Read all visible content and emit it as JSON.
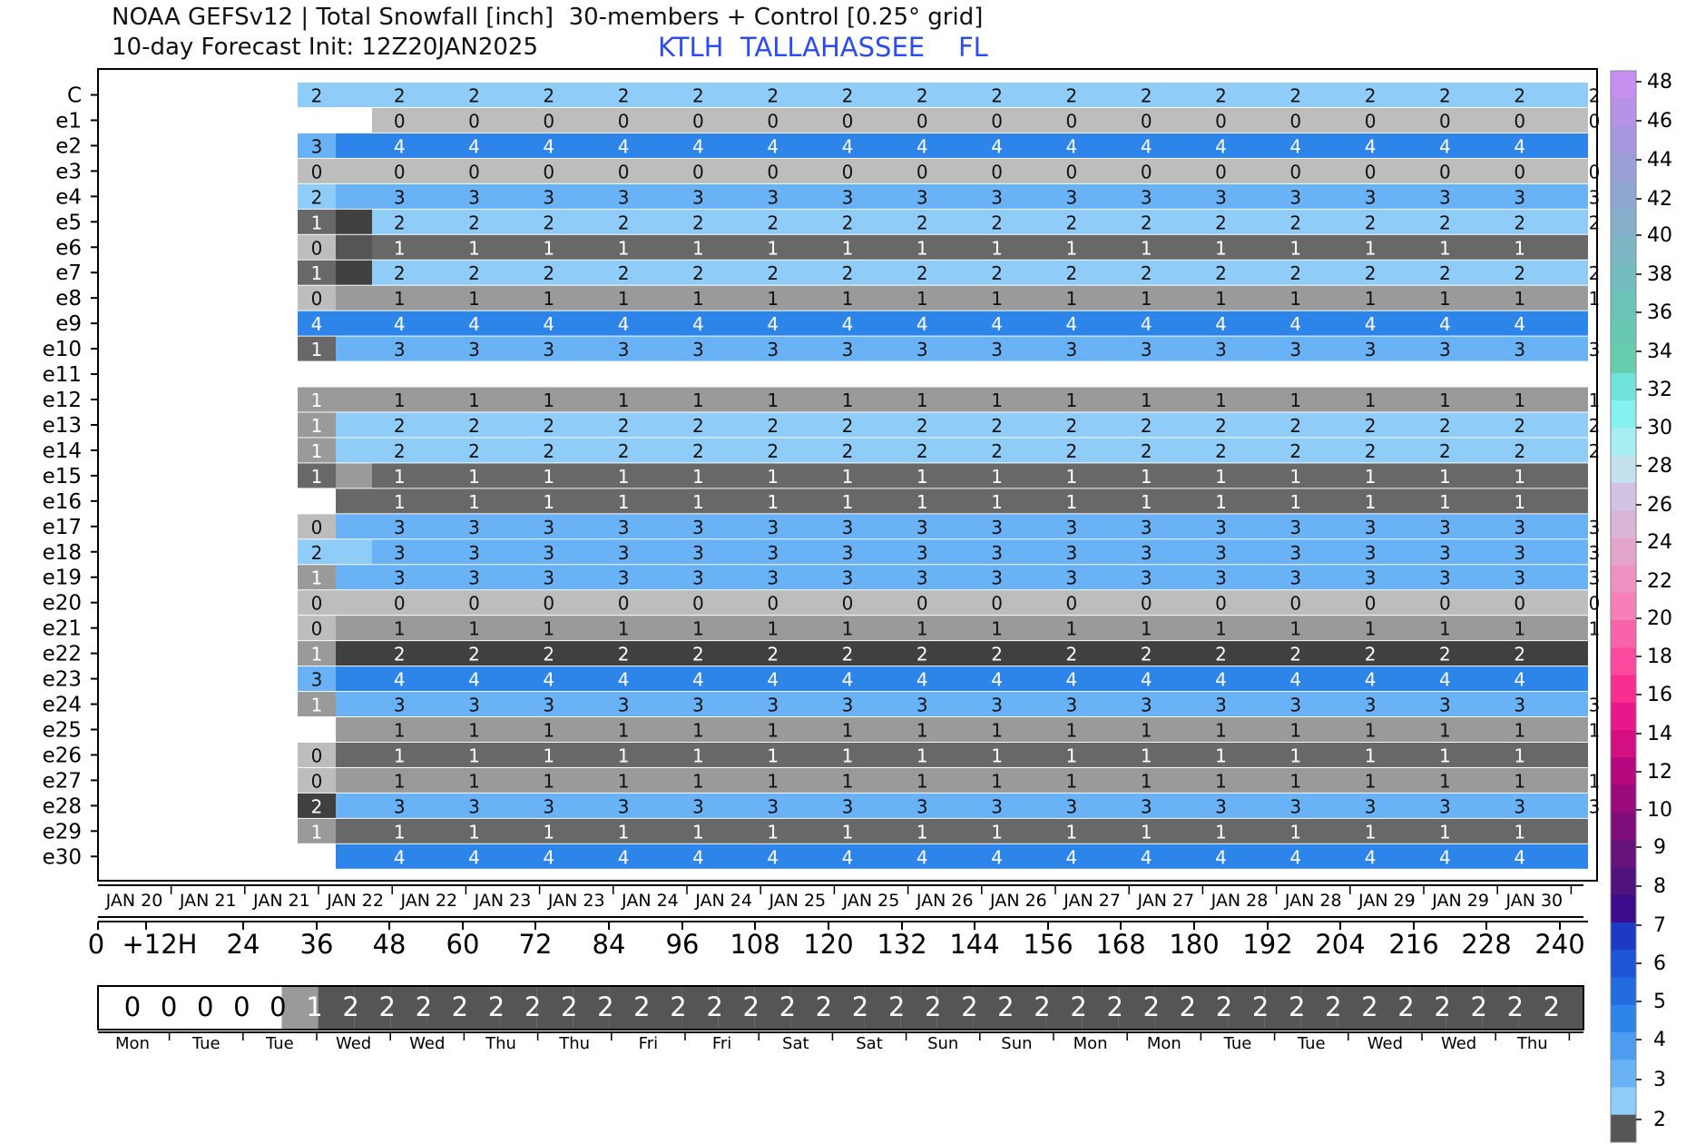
{
  "header": {
    "title_line1": "NOAA GEFSv12 | Total Snowfall [inch]  30-members + Control [0.25° grid]",
    "title_line2": "10-day Forecast Init: 12Z20JAN2025",
    "station": "KTLH  TALLAHASSEE    FL"
  },
  "colors": {
    "0": "#bdbdbd",
    "1": "#686868",
    "2": "#8fcdf8",
    "3": "#69b2f6",
    "4": "#2d85ea",
    "mid_dark": "#555555",
    "very_dark": "#404040",
    "bar_accent": "#9a9a9a"
  },
  "chart_data": {
    "type": "heatmap",
    "title": "NOAA GEFSv12 | Total Snowfall [inch]  30-members + Control [0.25° grid]",
    "members": [
      "C",
      "e1",
      "e2",
      "e3",
      "e4",
      "e5",
      "e6",
      "e7",
      "e8",
      "e9",
      "e10",
      "e11",
      "e12",
      "e13",
      "e14",
      "e15",
      "e16",
      "e17",
      "e18",
      "e19",
      "e20",
      "e21",
      "e22",
      "e23",
      "e24",
      "e25",
      "e26",
      "e27",
      "e28",
      "e29",
      "e30"
    ],
    "forecast_hours": [
      36,
      42,
      48,
      54,
      60,
      66,
      72,
      78,
      84,
      90,
      96,
      102,
      108,
      114,
      120,
      126,
      132,
      138,
      144,
      150,
      156,
      162,
      168,
      174,
      180,
      186,
      192,
      198,
      204,
      210,
      216,
      222,
      228,
      234,
      240
    ],
    "labeled_hours": [
      36,
      48,
      60,
      72,
      84,
      96,
      108,
      120,
      132,
      144,
      156,
      168,
      180,
      192,
      204,
      216,
      228,
      240
    ],
    "rows": [
      {
        "member": "C",
        "first": 2,
        "first_shade": "2",
        "early": "2",
        "value": 2,
        "shade": "2",
        "start_hour": 36
      },
      {
        "member": "e1",
        "first": null,
        "first_shade": null,
        "early": null,
        "value": 0,
        "shade": "0",
        "start_hour": 48
      },
      {
        "member": "e2",
        "first": 3,
        "first_shade": "3",
        "early": "4",
        "value": 4,
        "shade": "4",
        "start_hour": 36
      },
      {
        "member": "e3",
        "first": 0,
        "first_shade": "0",
        "early": "0",
        "value": 0,
        "shade": "0",
        "start_hour": 36
      },
      {
        "member": "e4",
        "first": 2,
        "first_shade": "2",
        "early": "3",
        "value": 3,
        "shade": "3",
        "start_hour": 36
      },
      {
        "member": "e5",
        "first": 1,
        "first_shade": "1",
        "early": "very_dark",
        "value": 2,
        "shade": "2",
        "start_hour": 36
      },
      {
        "member": "e6",
        "first": 0,
        "first_shade": "0",
        "early": "mid_dark",
        "value": 1,
        "shade": "1",
        "start_hour": 36
      },
      {
        "member": "e7",
        "first": 1,
        "first_shade": "1",
        "early": "very_dark",
        "value": 2,
        "shade": "2",
        "start_hour": 36
      },
      {
        "member": "e8",
        "first": 0,
        "first_shade": "0",
        "early": "bar_accent",
        "value": 1,
        "shade": "bar_accent",
        "start_hour": 36
      },
      {
        "member": "e9",
        "first": 4,
        "first_shade": "4",
        "early": "4",
        "value": 4,
        "shade": "4",
        "start_hour": 36
      },
      {
        "member": "e10",
        "first": 1,
        "first_shade": "1",
        "early": "3",
        "value": 3,
        "shade": "3",
        "start_hour": 36
      },
      {
        "member": "e11",
        "first": null,
        "first_shade": null,
        "early": null,
        "value": null,
        "shade": null,
        "start_hour": null
      },
      {
        "member": "e12",
        "first": 1,
        "first_shade": "bar_accent",
        "early": "bar_accent",
        "value": 1,
        "shade": "bar_accent",
        "start_hour": 36
      },
      {
        "member": "e13",
        "first": 1,
        "first_shade": "bar_accent",
        "early": "2",
        "value": 2,
        "shade": "2",
        "start_hour": 36
      },
      {
        "member": "e14",
        "first": 1,
        "first_shade": "bar_accent",
        "early": "2",
        "value": 2,
        "shade": "2",
        "start_hour": 36
      },
      {
        "member": "e15",
        "first": 1,
        "first_shade": "1",
        "early": "bar_accent",
        "value": 1,
        "shade": "1",
        "start_hour": 36
      },
      {
        "member": "e16",
        "first": null,
        "first_shade": null,
        "early": "1",
        "value": 1,
        "shade": "1",
        "start_hour": 42
      },
      {
        "member": "e17",
        "first": 0,
        "first_shade": "0",
        "early": "3",
        "value": 3,
        "shade": "3",
        "start_hour": 36
      },
      {
        "member": "e18",
        "first": 2,
        "first_shade": "2",
        "early": "2",
        "value": 3,
        "shade": "3",
        "start_hour": 36
      },
      {
        "member": "e19",
        "first": 1,
        "first_shade": "bar_accent",
        "early": "3",
        "value": 3,
        "shade": "3",
        "start_hour": 36
      },
      {
        "member": "e20",
        "first": 0,
        "first_shade": "0",
        "early": "0",
        "value": 0,
        "shade": "0",
        "start_hour": 36
      },
      {
        "member": "e21",
        "first": 0,
        "first_shade": "0",
        "early": "bar_accent",
        "value": 1,
        "shade": "bar_accent",
        "start_hour": 36
      },
      {
        "member": "e22",
        "first": 1,
        "first_shade": "bar_accent",
        "early": "very_dark",
        "value": 2,
        "shade": "very_dark",
        "start_hour": 36
      },
      {
        "member": "e23",
        "first": 3,
        "first_shade": "3",
        "early": "4",
        "value": 4,
        "shade": "4",
        "start_hour": 36
      },
      {
        "member": "e24",
        "first": 1,
        "first_shade": "bar_accent",
        "early": "3",
        "value": 3,
        "shade": "3",
        "start_hour": 36
      },
      {
        "member": "e25",
        "first": null,
        "first_shade": null,
        "early": "bar_accent",
        "value": 1,
        "shade": "bar_accent",
        "start_hour": 42
      },
      {
        "member": "e26",
        "first": 0,
        "first_shade": "0",
        "early": "1",
        "value": 1,
        "shade": "1",
        "start_hour": 36
      },
      {
        "member": "e27",
        "first": 0,
        "first_shade": "0",
        "early": "bar_accent",
        "value": 1,
        "shade": "bar_accent",
        "start_hour": 36
      },
      {
        "member": "e28",
        "first": 2,
        "first_shade": "very_dark",
        "early": "3",
        "value": 3,
        "shade": "3",
        "start_hour": 36
      },
      {
        "member": "e29",
        "first": 1,
        "first_shade": "bar_accent",
        "early": "1",
        "value": 1,
        "shade": "1",
        "start_hour": 36
      },
      {
        "member": "e30",
        "first": null,
        "first_shade": null,
        "early": "4",
        "value": 4,
        "shade": "4",
        "start_hour": 42
      }
    ],
    "date_labels": [
      "JAN 20",
      "JAN 21",
      "JAN 21",
      "JAN 22",
      "JAN 22",
      "JAN 23",
      "JAN 23",
      "JAN 24",
      "JAN 24",
      "JAN 25",
      "JAN 25",
      "JAN 26",
      "JAN 26",
      "JAN 27",
      "JAN 27",
      "JAN 28",
      "JAN 28",
      "JAN 29",
      "JAN 29",
      "JAN 30"
    ],
    "hour_labels": [
      "0",
      "+12H",
      "24",
      "36",
      "48",
      "60",
      "72",
      "84",
      "96",
      "108",
      "120",
      "132",
      "144",
      "156",
      "168",
      "180",
      "192",
      "204",
      "216",
      "228",
      "240"
    ],
    "summary_bar": {
      "values": [
        0,
        0,
        0,
        0,
        0,
        1,
        2,
        2,
        2,
        2,
        2,
        2,
        2,
        2,
        2,
        2,
        2,
        2,
        2,
        2,
        2,
        2,
        2,
        2,
        2,
        2,
        2,
        2,
        2,
        2,
        2,
        2,
        2,
        2,
        2,
        2,
        2,
        2,
        2,
        2,
        2
      ],
      "hours": [
        0,
        6,
        12,
        18,
        24,
        30,
        36,
        42,
        48,
        54,
        60,
        66,
        72,
        78,
        84,
        90,
        96,
        102,
        108,
        114,
        120,
        126,
        132,
        138,
        144,
        150,
        156,
        162,
        168,
        174,
        180,
        186,
        192,
        198,
        204,
        210,
        216,
        222,
        228,
        234,
        240
      ],
      "colored_from_hour": 30
    },
    "day_labels": [
      "Mon",
      "Tue",
      "Tue",
      "Wed",
      "Wed",
      "Thu",
      "Thu",
      "Fri",
      "Fri",
      "Sat",
      "Sat",
      "Sun",
      "Sun",
      "Mon",
      "Mon",
      "Tue",
      "Tue",
      "Wed",
      "Wed",
      "Thu"
    ],
    "colorbar": {
      "labels": [
        "48",
        "46",
        "44",
        "42",
        "40",
        "38",
        "36",
        "34",
        "32",
        "30",
        "28",
        "26",
        "24",
        "22",
        "20",
        "18",
        "16",
        "14",
        "12",
        "10",
        "9",
        "8",
        "7",
        "6",
        "5",
        "4",
        "3",
        "2"
      ],
      "colors_top_to_bottom": [
        "#c68ff0",
        "#b793e8",
        "#a897e0",
        "#9a9fd8",
        "#8fa6d0",
        "#86afcc",
        "#7db7c6",
        "#74bdbf",
        "#6cc3b8",
        "#69c8b2",
        "#66ceac",
        "#70e3dd",
        "#86f1ef",
        "#a6eef0",
        "#c3e2ee",
        "#d2c3e4",
        "#d9b5d8",
        "#e3a5cc",
        "#ee92c2",
        "#f67fb7",
        "#f863ab",
        "#fb4a9e",
        "#f72e90",
        "#e8188a",
        "#d40f82",
        "#b5087e",
        "#9b0a7b",
        "#7e0e79",
        "#66127b",
        "#50137e",
        "#3d0c8d",
        "#1e3ac3",
        "#1d55d6",
        "#236ce0",
        "#2d85ea",
        "#4d9cf0",
        "#69b2f6",
        "#8fcdf8",
        "#555555"
      ]
    },
    "xlim": [
      0,
      240
    ],
    "units": "inch"
  }
}
